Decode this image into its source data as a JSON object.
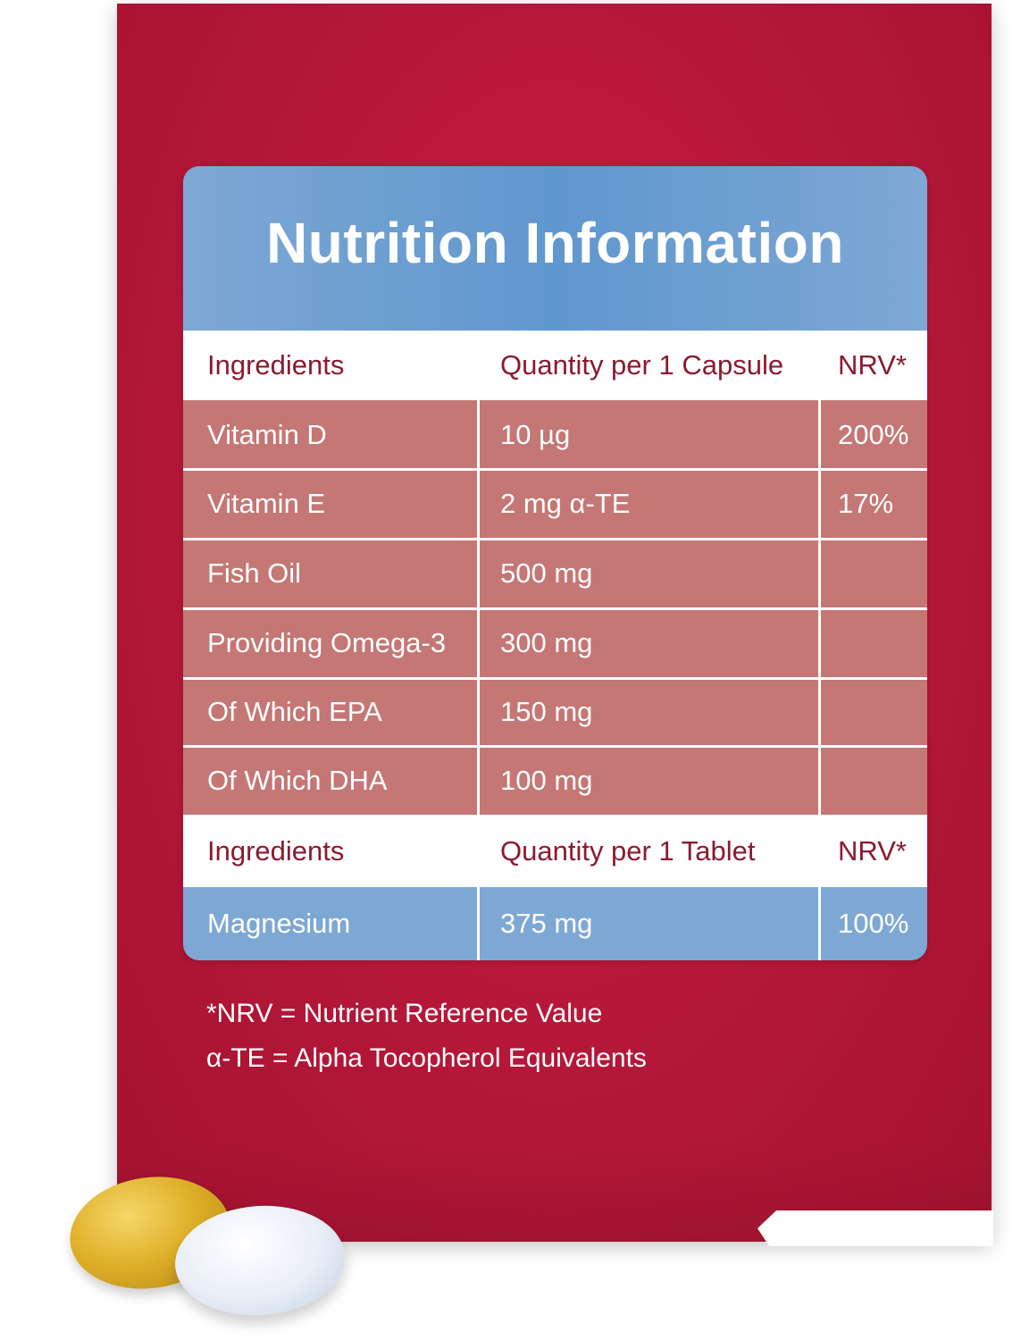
{
  "title": "Nutrition Information",
  "capsule_header": {
    "ingredients": "Ingredients",
    "quantity": "Quantity per 1 Capsule",
    "nrv": "NRV*"
  },
  "capsule_rows": [
    {
      "ingredient": "Vitamin D",
      "quantity": "10 µg",
      "nrv": "200%"
    },
    {
      "ingredient": "Vitamin E",
      "quantity": "2 mg α-TE",
      "nrv": "17%"
    },
    {
      "ingredient": "Fish Oil",
      "quantity": "500 mg",
      "nrv": ""
    },
    {
      "ingredient": "Providing Omega-3",
      "quantity": "300 mg",
      "nrv": ""
    },
    {
      "ingredient": "Of Which EPA",
      "quantity": "150 mg",
      "nrv": ""
    },
    {
      "ingredient": "Of Which DHA",
      "quantity": "100 mg",
      "nrv": ""
    }
  ],
  "tablet_header": {
    "ingredients": "Ingredients",
    "quantity": "Quantity per 1 Tablet",
    "nrv": "NRV*"
  },
  "tablet_rows": [
    {
      "ingredient": "Magnesium",
      "quantity": "375 mg",
      "nrv": "100%"
    }
  ],
  "footnotes": [
    "*NRV = Nutrient Reference Value",
    "α-TE = Alpha Tocopherol Equivalents"
  ],
  "colors": {
    "box_red": "#b8183a",
    "header_text": "#8b1a2e",
    "row_rose": "#c47775",
    "band_blue": "#7ea8d4"
  }
}
